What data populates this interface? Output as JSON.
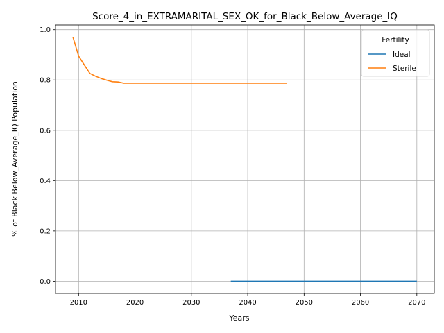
{
  "chart_data": {
    "type": "line",
    "title": "Score_4_in_EXTRAMARITAL_SEX_OK_for_Black_Below_Average_IQ",
    "xlabel": "Years",
    "ylabel": "% of Black Below_Average_IQ Population",
    "xlim": [
      2005.9,
      2073.1
    ],
    "ylim": [
      -0.0485,
      1.0185
    ],
    "x_ticks": [
      2010,
      2020,
      2030,
      2040,
      2050,
      2060,
      2070
    ],
    "y_ticks": [
      0.0,
      0.2,
      0.4,
      0.6,
      0.8,
      1.0
    ],
    "y_tick_labels": [
      "0.0",
      "0.2",
      "0.4",
      "0.6",
      "0.8",
      "1.0"
    ],
    "grid": true,
    "legend": {
      "title": "Fertility",
      "placement": "top-right"
    },
    "series": [
      {
        "name": "Ideal",
        "color": "#1f77b4",
        "x": [
          2037,
          2070
        ],
        "y": [
          0.0,
          0.0
        ]
      },
      {
        "name": "Sterile",
        "color": "#ff7f0e",
        "x": [
          2009,
          2010,
          2011,
          2012,
          2013,
          2014,
          2015,
          2016,
          2017,
          2018,
          2019,
          2020,
          2025,
          2030,
          2035,
          2040,
          2045,
          2047
        ],
        "y": [
          0.97,
          0.895,
          0.86,
          0.826,
          0.815,
          0.806,
          0.799,
          0.793,
          0.792,
          0.787,
          0.787,
          0.787,
          0.787,
          0.787,
          0.787,
          0.787,
          0.787,
          0.787
        ]
      }
    ]
  }
}
